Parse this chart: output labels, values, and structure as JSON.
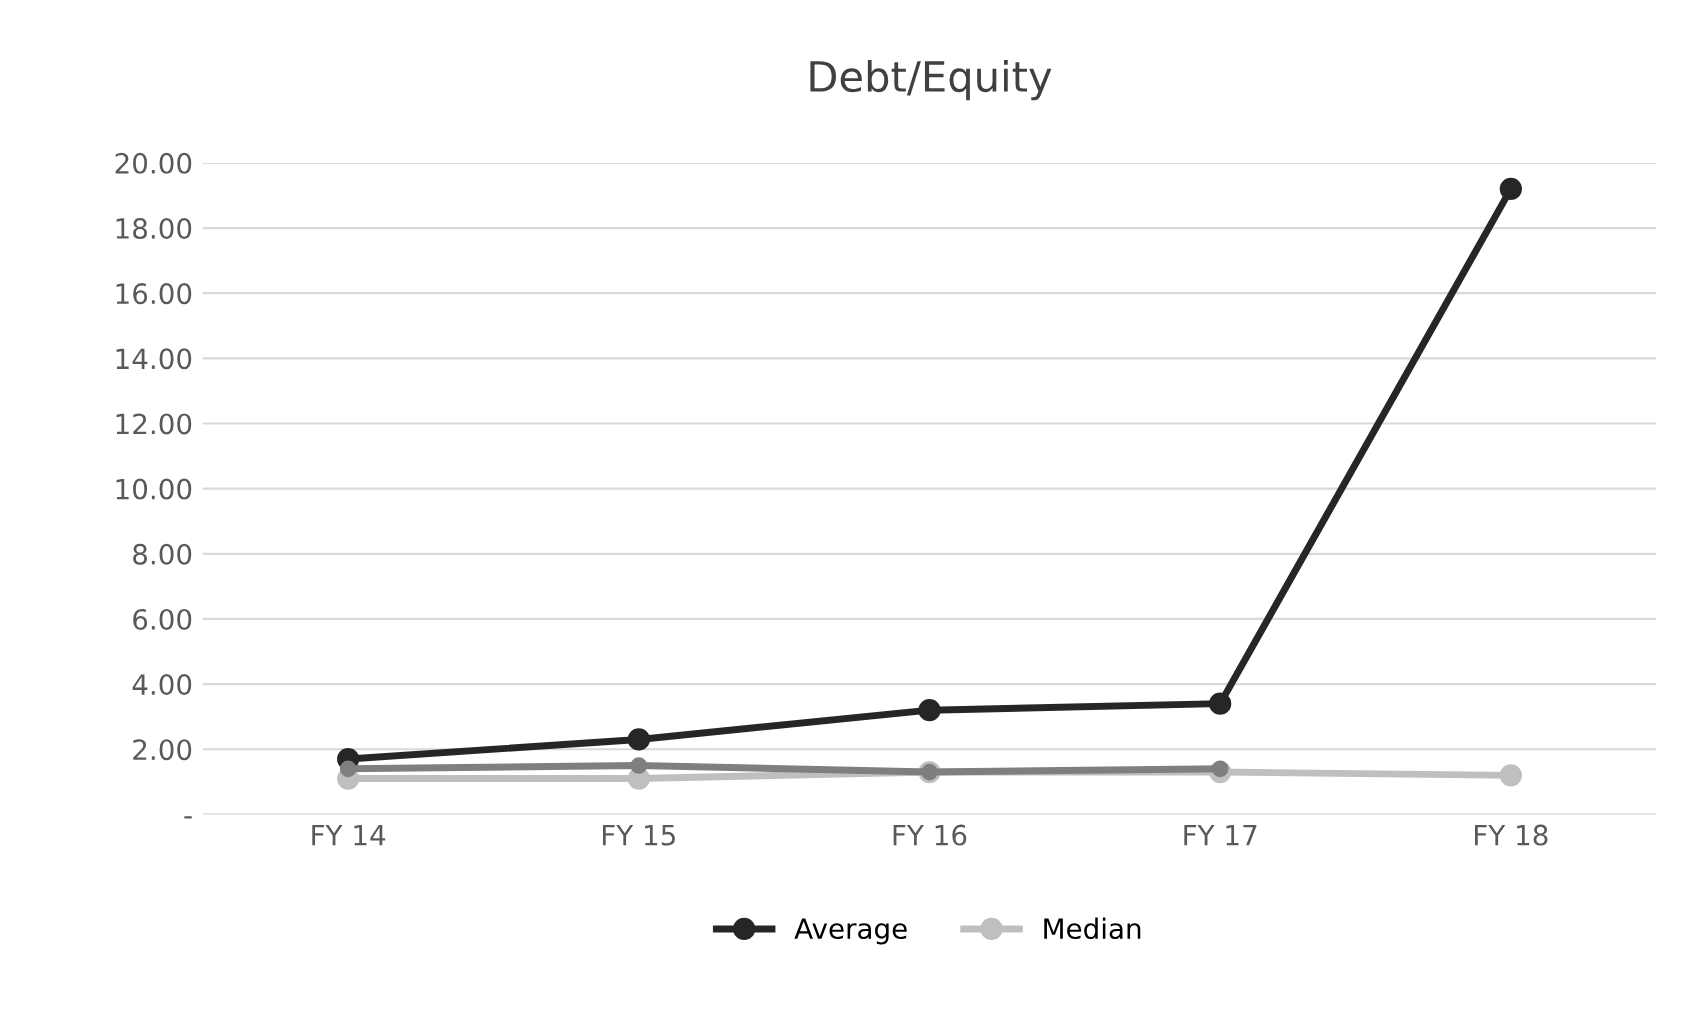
{
  "chart_data": {
    "type": "line",
    "title": "Debt/Equity",
    "categories": [
      "FY 14",
      "FY 15",
      "FY 16",
      "FY 17",
      "FY 18"
    ],
    "series": [
      {
        "color": "#7f7f7f",
        "values": [
          1.4,
          1.5,
          1.3,
          1.4,
          null
        ]
      },
      {
        "name": "Average",
        "color": "#262626",
        "values": [
          1.7,
          2.3,
          3.2,
          3.4,
          19.2
        ]
      },
      {
        "name": "Median",
        "color": "#bfbfbf",
        "values": [
          1.1,
          1.1,
          1.3,
          1.3,
          1.2
        ]
      }
    ],
    "ylim": [
      0,
      20
    ],
    "yticks": [
      {
        "value": 0,
        "label": "-"
      },
      {
        "value": 2,
        "label": "2.00"
      },
      {
        "value": 4,
        "label": "4.00"
      },
      {
        "value": 6,
        "label": "6.00"
      },
      {
        "value": 8,
        "label": "8.00"
      },
      {
        "value": 10,
        "label": "10.00"
      },
      {
        "value": 12,
        "label": "12.00"
      },
      {
        "value": 14,
        "label": "14.00"
      },
      {
        "value": 16,
        "label": "16.00"
      },
      {
        "value": 18,
        "label": "18.00"
      },
      {
        "value": 20,
        "label": "20.00"
      }
    ],
    "grid": "y",
    "legend": "bottom",
    "marker": "circle",
    "line_style": "solid"
  }
}
